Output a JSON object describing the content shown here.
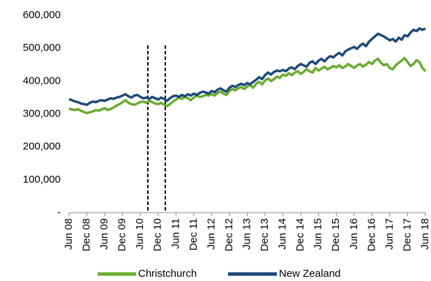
{
  "chart_data": {
    "type": "line",
    "categories": [
      "Jun 08",
      null,
      null,
      null,
      null,
      null,
      "Dec 08",
      null,
      null,
      null,
      null,
      null,
      "Jun 09",
      null,
      null,
      null,
      null,
      null,
      "Dec 09",
      null,
      null,
      null,
      null,
      null,
      "Jun 10",
      null,
      null,
      null,
      null,
      null,
      "Dec 10",
      null,
      null,
      null,
      null,
      null,
      "Jun 11",
      null,
      null,
      null,
      null,
      null,
      "Dec 11",
      null,
      null,
      null,
      null,
      null,
      "Jun 12",
      null,
      null,
      null,
      null,
      null,
      "Dec 12",
      null,
      null,
      null,
      null,
      null,
      "Jun 13",
      null,
      null,
      null,
      null,
      null,
      "Dec 13",
      null,
      null,
      null,
      null,
      null,
      "Jun 14",
      null,
      null,
      null,
      null,
      null,
      "Dec 14",
      null,
      null,
      null,
      null,
      null,
      "Jun 15",
      null,
      null,
      null,
      null,
      null,
      "Dec 15",
      null,
      null,
      null,
      null,
      null,
      "Jun 16",
      null,
      null,
      null,
      null,
      null,
      "Dec 16",
      null,
      null,
      null,
      null,
      null,
      "Jun 17",
      null,
      null,
      null,
      null,
      null,
      "Dec 17",
      null,
      null,
      null,
      null,
      null,
      "Jun 18"
    ],
    "series": [
      {
        "name": "Christchurch",
        "color": "#6aaa2e",
        "values": [
          316,
          314,
          312,
          315,
          310,
          306,
          303,
          305,
          308,
          312,
          310,
          314,
          318,
          312,
          315,
          320,
          326,
          330,
          336,
          342,
          334,
          330,
          328,
          332,
          336,
          338,
          334,
          340,
          336,
          332,
          330,
          334,
          328,
          324,
          330,
          338,
          344,
          350,
          346,
          352,
          348,
          342,
          350,
          356,
          352,
          354,
          358,
          356,
          360,
          356,
          364,
          368,
          362,
          358,
          370,
          376,
          372,
          378,
          382,
          376,
          384,
          388,
          380,
          392,
          398,
          390,
          402,
          408,
          400,
          406,
          414,
          410,
          420,
          416,
          424,
          418,
          426,
          430,
          422,
          428,
          436,
          430,
          426,
          440,
          432,
          438,
          444,
          436,
          440,
          446,
          442,
          448,
          440,
          444,
          452,
          446,
          440,
          448,
          452,
          444,
          450,
          458,
          452,
          462,
          468,
          456,
          448,
          452,
          440,
          436,
          448,
          456,
          462,
          470,
          458,
          446,
          452,
          464,
          458,
          440,
          430
        ]
      },
      {
        "name": "New Zealand",
        "color": "#1c4a78",
        "values": [
          345,
          342,
          338,
          336,
          332,
          330,
          328,
          334,
          338,
          336,
          340,
          342,
          340,
          344,
          348,
          346,
          350,
          352,
          356,
          360,
          354,
          350,
          356,
          358,
          352,
          348,
          350,
          346,
          352,
          348,
          344,
          350,
          346,
          340,
          348,
          354,
          356,
          352,
          358,
          354,
          360,
          356,
          362,
          358,
          364,
          368,
          366,
          362,
          370,
          366,
          374,
          378,
          372,
          368,
          380,
          386,
          382,
          388,
          392,
          388,
          394,
          390,
          398,
          404,
          412,
          406,
          418,
          426,
          420,
          428,
          432,
          430,
          434,
          430,
          438,
          442,
          436,
          446,
          452,
          448,
          444,
          456,
          460,
          452,
          462,
          468,
          460,
          470,
          476,
          472,
          480,
          486,
          478,
          490,
          496,
          500,
          504,
          498,
          508,
          514,
          506,
          520,
          528,
          536,
          544,
          540,
          536,
          530,
          524,
          528,
          520,
          532,
          526,
          540,
          536,
          548,
          556,
          552,
          560,
          556,
          560
        ]
      }
    ],
    "ylim": [
      0,
      600000
    ],
    "yscale_unit": 1000,
    "yticks": [
      {
        "value": 0,
        "label": "-"
      },
      {
        "value": 100000,
        "label": "100,000"
      },
      {
        "value": 200000,
        "label": "200,000"
      },
      {
        "value": 300000,
        "label": "300,000"
      },
      {
        "value": 400000,
        "label": "400,000"
      },
      {
        "value": 500000,
        "label": "500,000"
      },
      {
        "value": 600000,
        "label": "600,000"
      }
    ],
    "grid": false,
    "legend": "bottom"
  }
}
